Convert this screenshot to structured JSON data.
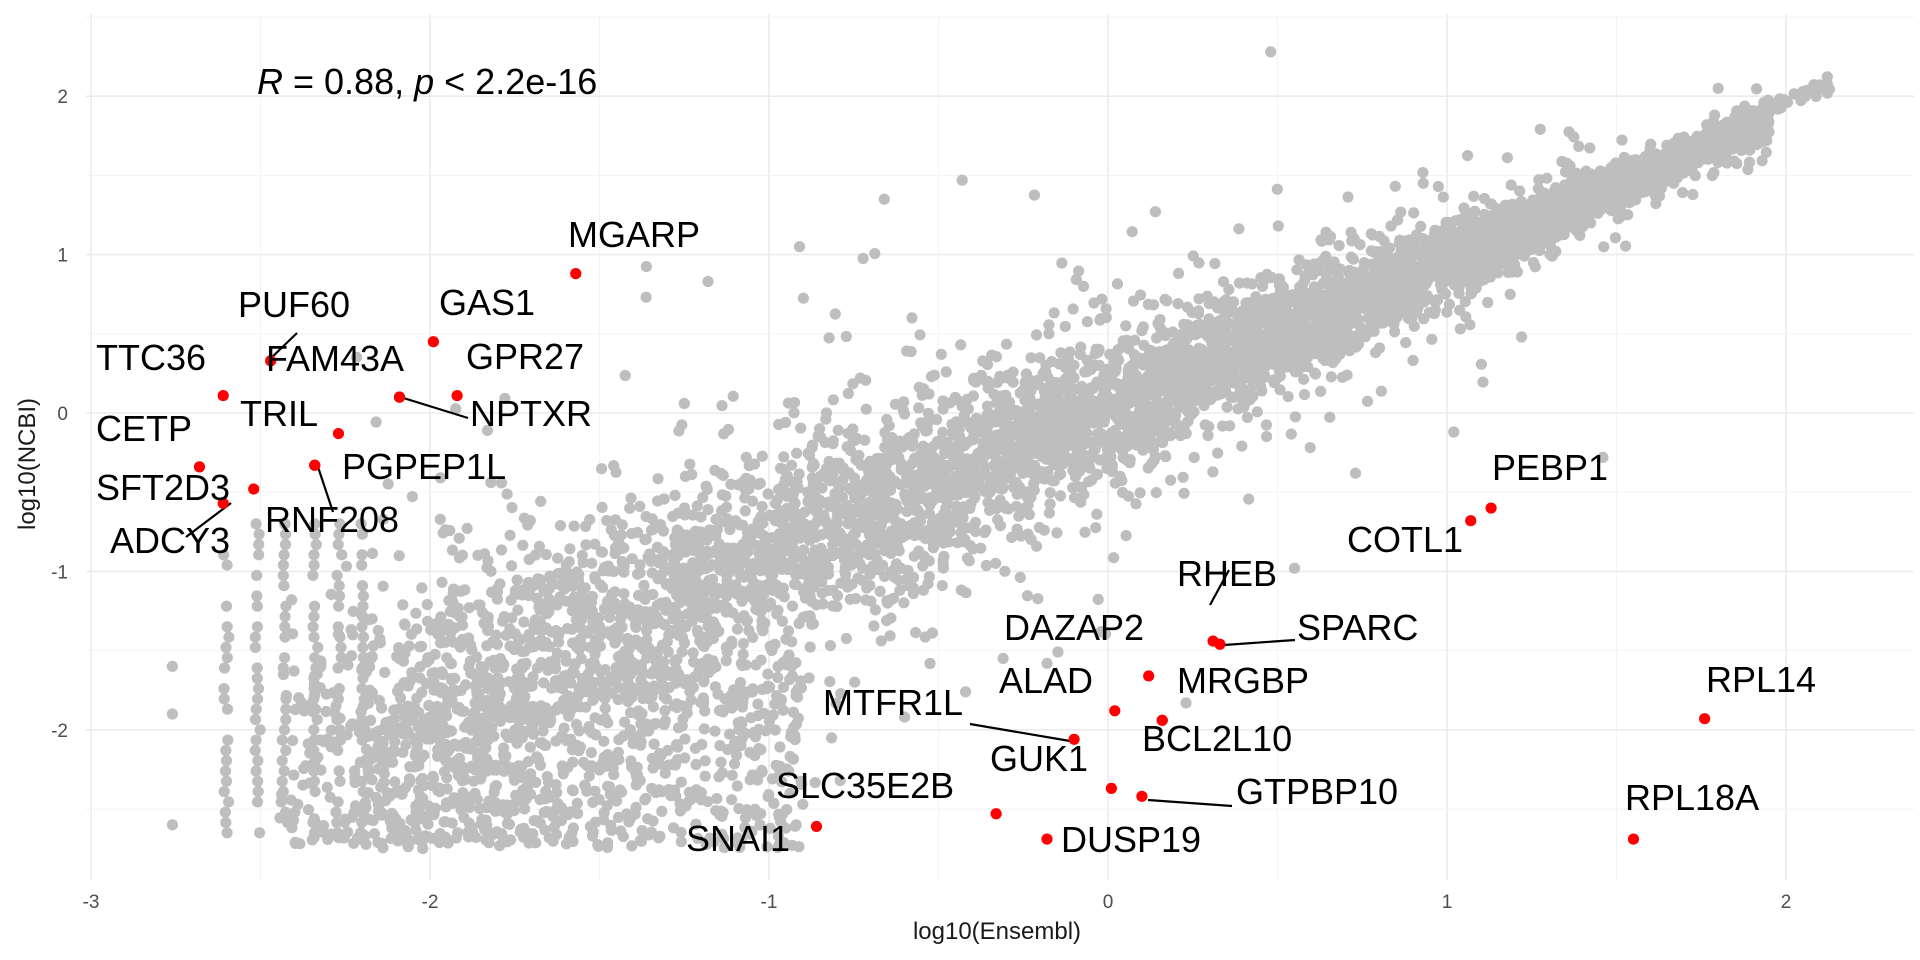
{
  "chart_data": {
    "type": "scatter",
    "xlabel": "log10(Ensembl)",
    "ylabel": "log10(NCBI)",
    "xlim": [
      -3,
      2.3
    ],
    "ylim": [
      -2.9,
      2.55
    ],
    "x_ticks": [
      -3,
      -2,
      -1,
      0,
      1,
      2
    ],
    "y_ticks": [
      -2,
      -1,
      0,
      1,
      2
    ],
    "x_tick_labels": [
      "-3",
      "-2",
      "-1",
      "0",
      "1",
      "2"
    ],
    "y_tick_labels": [
      "-2",
      "-1",
      "0",
      "1",
      "2"
    ],
    "grid": true,
    "annotation": {
      "r_symbol": "R",
      "r_text": " = 0.88, ",
      "p_symbol": "p",
      "p_text": " < 2.2e-16"
    },
    "background_points": {
      "color": "#bebebe",
      "count_estimate": 6000,
      "description": "",
      "outliers": [
        [
          0.48,
          2.28
        ],
        [
          1.8,
          2.05
        ],
        [
          -0.43,
          1.47
        ],
        [
          0.93,
          1.45
        ],
        [
          -0.66,
          1.35
        ],
        [
          -0.91,
          1.05
        ],
        [
          0.72,
          0.83
        ],
        [
          1.31,
          0.99
        ],
        [
          1.22,
          0.48
        ],
        [
          0.73,
          -0.38
        ],
        [
          -1.25,
          0.06
        ],
        [
          -1.18,
          0.83
        ],
        [
          1.02,
          -0.12
        ],
        [
          1.46,
          -0.28
        ],
        [
          0.86,
          0.75
        ],
        [
          0.55,
          -0.98
        ],
        [
          -0.02,
          -1.38
        ],
        [
          -0.18,
          -1.58
        ],
        [
          -0.42,
          -1.76
        ],
        [
          -0.6,
          -1.92
        ],
        [
          -0.79,
          -2.32
        ],
        [
          -1.38,
          -2.32
        ],
        [
          -1.45,
          -2.45
        ],
        [
          -0.99,
          -2.31
        ],
        [
          0.23,
          -1.83
        ],
        [
          -2.76,
          -1.6
        ],
        [
          -2.76,
          -1.9
        ],
        [
          -2.76,
          -2.6
        ]
      ]
    },
    "highlight_color": "#ff0000",
    "highlighted": [
      {
        "label": "MGARP",
        "x": -1.57,
        "y": 0.88
      },
      {
        "label": "GAS1",
        "x": -1.99,
        "y": 0.45
      },
      {
        "label": "PUF60",
        "x": -2.47,
        "y": 0.33
      },
      {
        "label": "FAM43A",
        "x": -2.09,
        "y": 0.1
      },
      {
        "label": "GPR27",
        "x": -1.92,
        "y": 0.11
      },
      {
        "label": "NPTXR",
        "x": -2.09,
        "y": 0.1
      },
      {
        "label": "TTC36",
        "x": -2.61,
        "y": 0.11
      },
      {
        "label": "TRIL",
        "x": -2.27,
        "y": -0.13
      },
      {
        "label": "CETP",
        "x": -2.68,
        "y": -0.34
      },
      {
        "label": "PGPEP1L",
        "x": -2.34,
        "y": -0.33
      },
      {
        "label": "SFT2D3",
        "x": -2.52,
        "y": -0.48
      },
      {
        "label": "ADCY3",
        "x": -2.61,
        "y": -0.57
      },
      {
        "label": "RNF208",
        "x": -2.34,
        "y": -0.33
      },
      {
        "label": "PEBP1",
        "x": 1.13,
        "y": -0.6
      },
      {
        "label": "COTL1",
        "x": 1.07,
        "y": -0.68
      },
      {
        "label": "RHEB",
        "x": 0.31,
        "y": -1.44
      },
      {
        "label": "SPARC",
        "x": 0.33,
        "y": -1.46
      },
      {
        "label": "DAZAP2",
        "x": 0.12,
        "y": -1.66
      },
      {
        "label": "ALAD",
        "x": 0.02,
        "y": -1.88
      },
      {
        "label": "MRGBP",
        "x": 0.16,
        "y": -1.94
      },
      {
        "label": "MTFR1L",
        "x": -0.1,
        "y": -2.06
      },
      {
        "label": "BCL2L10",
        "x": 0.16,
        "y": -1.94
      },
      {
        "label": "GUK1",
        "x": 0.01,
        "y": -2.37
      },
      {
        "label": "GTPBP10",
        "x": 0.1,
        "y": -2.42
      },
      {
        "label": "SLC35E2B",
        "x": -0.33,
        "y": -2.53
      },
      {
        "label": "SNAI1",
        "x": -0.86,
        "y": -2.61
      },
      {
        "label": "DUSP19",
        "x": -0.18,
        "y": -2.69
      },
      {
        "label": "RPL14",
        "x": 1.76,
        "y": -1.93
      },
      {
        "label": "RPL18A",
        "x": 1.55,
        "y": -2.69
      }
    ]
  }
}
